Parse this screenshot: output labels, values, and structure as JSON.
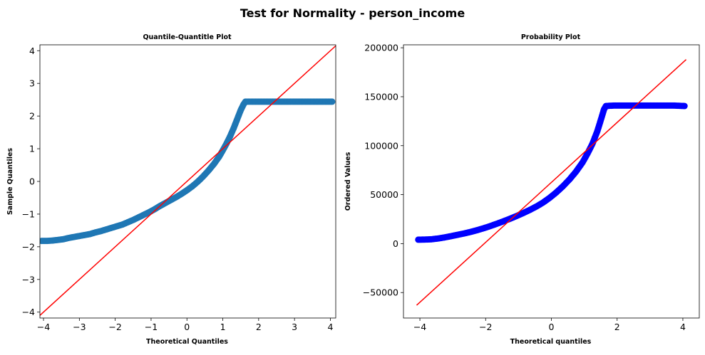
{
  "figure": {
    "suptitle": "Test for Normality - person_income"
  },
  "chart_data": [
    {
      "type": "scatter",
      "title": "Quantile-Quantitle Plot",
      "xlabel": "Theoretical Quantiles",
      "ylabel": "Sample Quantiles",
      "xlim": [
        -4.1,
        4.15
      ],
      "ylim": [
        -4.18,
        4.18
      ],
      "xticks": [
        -4,
        -3,
        -2,
        -1,
        0,
        1,
        2,
        3,
        4
      ],
      "yticks": [
        -4,
        -3,
        -2,
        -1,
        0,
        1,
        2,
        3,
        4
      ],
      "xtick_labels": [
        "−4",
        "−3",
        "−2",
        "−1",
        "0",
        "1",
        "2",
        "3",
        "4"
      ],
      "ytick_labels": [
        "−4",
        "−3",
        "−2",
        "−1",
        "0",
        "1",
        "2",
        "3",
        "4"
      ],
      "marker_color": "#1f77b4",
      "line_color": "#ff0000",
      "points": [
        [
          -4.05,
          -1.82
        ],
        [
          -3.9,
          -1.82
        ],
        [
          -3.75,
          -1.81
        ],
        [
          -3.6,
          -1.79
        ],
        [
          -3.45,
          -1.77
        ],
        [
          -3.3,
          -1.73
        ],
        [
          -3.15,
          -1.7
        ],
        [
          -3.0,
          -1.67
        ],
        [
          -2.85,
          -1.64
        ],
        [
          -2.7,
          -1.61
        ],
        [
          -2.55,
          -1.56
        ],
        [
          -2.4,
          -1.52
        ],
        [
          -2.25,
          -1.47
        ],
        [
          -2.1,
          -1.42
        ],
        [
          -1.95,
          -1.37
        ],
        [
          -1.8,
          -1.32
        ],
        [
          -1.65,
          -1.25
        ],
        [
          -1.5,
          -1.18
        ],
        [
          -1.35,
          -1.1
        ],
        [
          -1.2,
          -1.02
        ],
        [
          -1.05,
          -0.94
        ],
        [
          -0.9,
          -0.85
        ],
        [
          -0.75,
          -0.75
        ],
        [
          -0.6,
          -0.66
        ],
        [
          -0.45,
          -0.57
        ],
        [
          -0.3,
          -0.48
        ],
        [
          -0.15,
          -0.38
        ],
        [
          0.0,
          -0.27
        ],
        [
          0.15,
          -0.15
        ],
        [
          0.3,
          -0.01
        ],
        [
          0.45,
          0.15
        ],
        [
          0.6,
          0.33
        ],
        [
          0.75,
          0.53
        ],
        [
          0.9,
          0.76
        ],
        [
          1.0,
          0.95
        ],
        [
          1.1,
          1.15
        ],
        [
          1.2,
          1.37
        ],
        [
          1.3,
          1.62
        ],
        [
          1.4,
          1.9
        ],
        [
          1.5,
          2.18
        ],
        [
          1.58,
          2.36
        ],
        [
          1.63,
          2.44
        ],
        [
          1.8,
          2.44
        ],
        [
          2.1,
          2.44
        ],
        [
          2.4,
          2.44
        ],
        [
          2.7,
          2.44
        ],
        [
          3.0,
          2.44
        ],
        [
          3.3,
          2.44
        ],
        [
          3.6,
          2.44
        ],
        [
          3.9,
          2.44
        ],
        [
          4.05,
          2.44
        ]
      ],
      "reference_line": {
        "x": [
          -4.1,
          4.15
        ],
        "y": [
          -4.1,
          4.15
        ]
      }
    },
    {
      "type": "scatter",
      "title": "Probability Plot",
      "xlabel": "Theoretical quantiles",
      "ylabel": "Ordered Values",
      "xlim": [
        -4.5,
        4.5
      ],
      "ylim": [
        -76000,
        203000
      ],
      "xticks": [
        -4,
        -2,
        0,
        2,
        4
      ],
      "yticks": [
        -50000,
        0,
        50000,
        100000,
        150000,
        200000
      ],
      "xtick_labels": [
        "−4",
        "−2",
        "0",
        "2",
        "4"
      ],
      "ytick_labels": [
        "−50000",
        "0",
        "50000",
        "100000",
        "150000",
        "200000"
      ],
      "marker_color": "#0000ff",
      "line_color": "#ff0000",
      "points": [
        [
          -4.05,
          4000
        ],
        [
          -3.85,
          4100
        ],
        [
          -3.65,
          4400
        ],
        [
          -3.45,
          5200
        ],
        [
          -3.25,
          6300
        ],
        [
          -3.05,
          7600
        ],
        [
          -2.85,
          9000
        ],
        [
          -2.65,
          10400
        ],
        [
          -2.45,
          12000
        ],
        [
          -2.25,
          13800
        ],
        [
          -2.05,
          15800
        ],
        [
          -1.85,
          18000
        ],
        [
          -1.65,
          20400
        ],
        [
          -1.45,
          22900
        ],
        [
          -1.25,
          25500
        ],
        [
          -1.05,
          28300
        ],
        [
          -0.85,
          31300
        ],
        [
          -0.65,
          34500
        ],
        [
          -0.45,
          38000
        ],
        [
          -0.25,
          42000
        ],
        [
          -0.05,
          46800
        ],
        [
          0.15,
          52300
        ],
        [
          0.35,
          58500
        ],
        [
          0.55,
          65500
        ],
        [
          0.75,
          73500
        ],
        [
          0.95,
          83000
        ],
        [
          1.1,
          92000
        ],
        [
          1.25,
          102000
        ],
        [
          1.4,
          115000
        ],
        [
          1.52,
          128000
        ],
        [
          1.6,
          137000
        ],
        [
          1.66,
          140500
        ],
        [
          1.9,
          141000
        ],
        [
          2.2,
          141000
        ],
        [
          2.5,
          141000
        ],
        [
          2.8,
          141000
        ],
        [
          3.1,
          141000
        ],
        [
          3.4,
          141000
        ],
        [
          3.7,
          141000
        ],
        [
          4.05,
          140500
        ]
      ],
      "reference_line": {
        "x": [
          -4.1,
          4.1
        ],
        "y": [
          -63000,
          188000
        ]
      }
    }
  ]
}
